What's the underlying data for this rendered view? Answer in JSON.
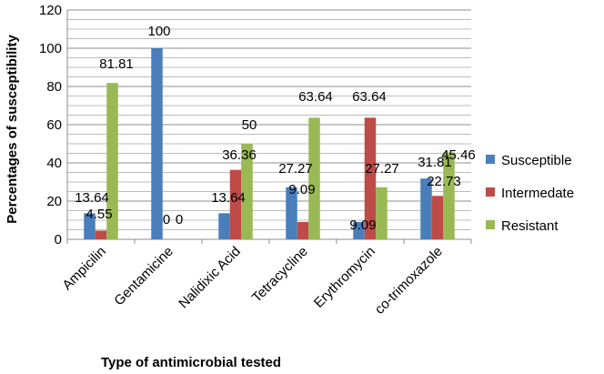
{
  "chart_data": {
    "type": "bar",
    "title": "",
    "xlabel": "Type of antimicrobial tested",
    "ylabel": "Percentages of susceptibility",
    "ylim": [
      0,
      120
    ],
    "yticks": [
      0,
      20,
      40,
      60,
      80,
      100,
      120
    ],
    "grid": true,
    "legend_position": "right",
    "categories": [
      "Ampicilin",
      "Gentamicine",
      "Nalidixic Acid",
      "Tetracycline",
      "Erythromycin",
      "co-trimoxazole"
    ],
    "series": [
      {
        "name": "Susceptible",
        "color": "#4A7EBB",
        "values": [
          13.64,
          100,
          13.64,
          27.27,
          9.09,
          31.81
        ],
        "labels": [
          "13.64",
          "100",
          "13.64",
          "27.27",
          "9.09",
          "31.81"
        ]
      },
      {
        "name": "Intermedate",
        "color": "#BE4B48",
        "values": [
          4.55,
          0,
          36.36,
          9.09,
          63.64,
          22.73
        ],
        "labels": [
          "4.55",
          "0",
          "36.36",
          "9.09",
          "63.64",
          "22.73"
        ]
      },
      {
        "name": "Resistant",
        "color": "#98B954",
        "values": [
          81.81,
          0,
          50,
          63.64,
          27.27,
          45.46
        ],
        "labels": [
          "81.81",
          "0",
          "50",
          "63.64",
          "27.27",
          "45.46"
        ]
      }
    ]
  }
}
